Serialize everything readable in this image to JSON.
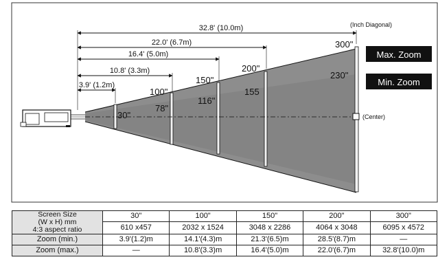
{
  "header": {
    "inch_diagonal": "(Inch Diagonal)",
    "max_zoom": "Max. Zoom",
    "min_zoom": "Min. Zoom",
    "center": "(Center)"
  },
  "throw_distances": [
    "32.8' (10.0m)",
    "22.0' (6.7m)",
    "16.4' (5.0m)",
    "10.8' (3.3m)",
    "3.9' (1.2m)"
  ],
  "diagonals_max_zoom": [
    "300\"",
    "200\"",
    "150\"",
    "100\""
  ],
  "diagonals_min_zoom": [
    "230\"",
    "155",
    "116\"",
    "78\"",
    "30\""
  ],
  "table": {
    "header_label_lines": [
      "Screen Size",
      "(W x H) mm",
      "4:3 aspect ratio"
    ],
    "columns": [
      {
        "size": "30\"",
        "dims": "610 x457",
        "zoom_min": "3.9'(1.2)m",
        "zoom_max": "—"
      },
      {
        "size": "100\"",
        "dims": "2032 x 1524",
        "zoom_min": "14.1'(4.3)m",
        "zoom_max": "10.8'(3.3)m"
      },
      {
        "size": "150\"",
        "dims": "3048 x 2286",
        "zoom_min": "21.3'(6.5)m",
        "zoom_max": "16.4'(5.0)m"
      },
      {
        "size": "200\"",
        "dims": "4064 x 3048",
        "zoom_min": "28.5'(8.7)m",
        "zoom_max": "22.0'(6.7)m"
      },
      {
        "size": "300\"",
        "dims": "6095 x 4572",
        "zoom_min": "—",
        "zoom_max": "32.8'(10.0)m"
      }
    ],
    "row_labels": {
      "zoom_min": "Zoom (min.)",
      "zoom_max": "Zoom (max.)"
    }
  }
}
